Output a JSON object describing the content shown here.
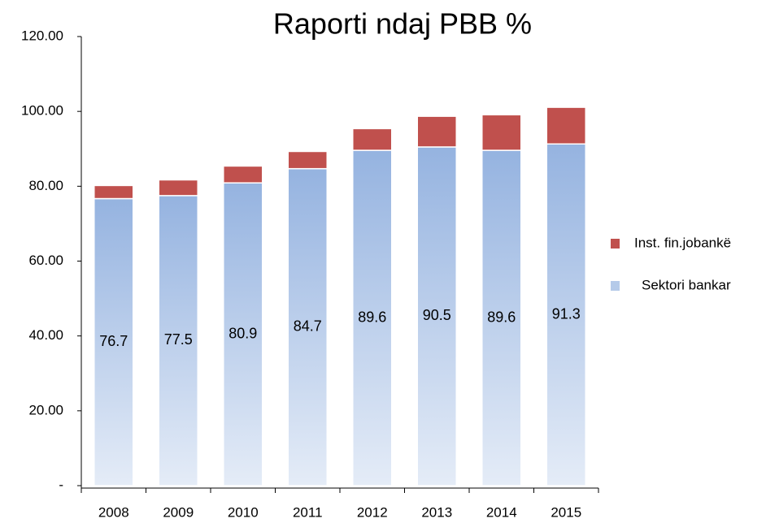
{
  "chart_data": {
    "type": "stacked_bar",
    "title": "Raporti ndaj PBB %",
    "categories": [
      "2008",
      "2009",
      "2010",
      "2011",
      "2012",
      "2013",
      "2014",
      "2015"
    ],
    "series": [
      {
        "name": "Sektori bankar",
        "color": "#95b3e0",
        "values": [
          76.7,
          77.5,
          80.9,
          84.7,
          89.6,
          90.5,
          89.6,
          91.3
        ]
      },
      {
        "name": "Inst. fin.jobankë",
        "color": "#c0504d",
        "values": [
          3.5,
          4.2,
          4.5,
          4.6,
          5.8,
          8.2,
          9.5,
          9.8
        ]
      }
    ],
    "ylim": [
      0,
      120
    ],
    "yticks": [
      {
        "value": 0,
        "label": "-"
      },
      {
        "value": 20,
        "label": "20.00"
      },
      {
        "value": 40,
        "label": "40.00"
      },
      {
        "value": 60,
        "label": "60.00"
      },
      {
        "value": 80,
        "label": "80.00"
      },
      {
        "value": 100,
        "label": "100.00"
      },
      {
        "value": 120,
        "label": "120.00"
      }
    ],
    "data_labels_series": 0
  }
}
